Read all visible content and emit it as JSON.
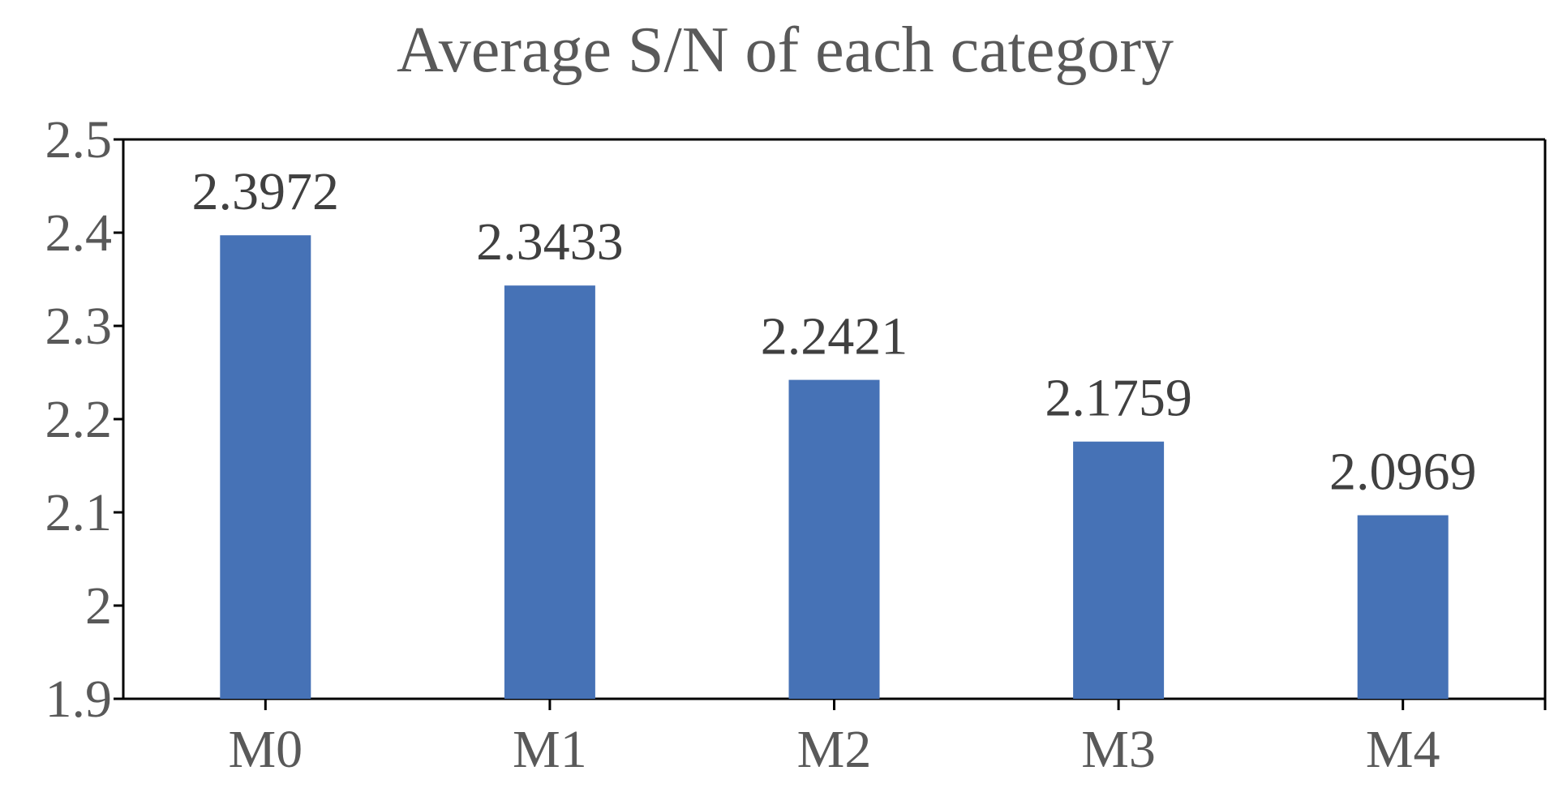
{
  "chart_data": {
    "type": "bar",
    "title": "Average S/N of each category",
    "xlabel": "",
    "ylabel": "",
    "categories": [
      "M0",
      "M1",
      "M2",
      "M3",
      "M4"
    ],
    "values": [
      2.3972,
      2.3433,
      2.2421,
      2.1759,
      2.0969
    ],
    "value_labels": [
      "2.3972",
      "2.3433",
      "2.2421",
      "2.1759",
      "2.0969"
    ],
    "ylim": [
      1.9,
      2.5
    ],
    "yticks": [
      1.9,
      2.0,
      2.1,
      2.2,
      2.3,
      2.4,
      2.5
    ],
    "ytick_labels": [
      "1.9",
      "2",
      "2.1",
      "2.2",
      "2.3",
      "2.4",
      "2.5"
    ],
    "grid": false,
    "legend": "none",
    "bar_color": "#4672B6",
    "axis_color": "#000000"
  }
}
